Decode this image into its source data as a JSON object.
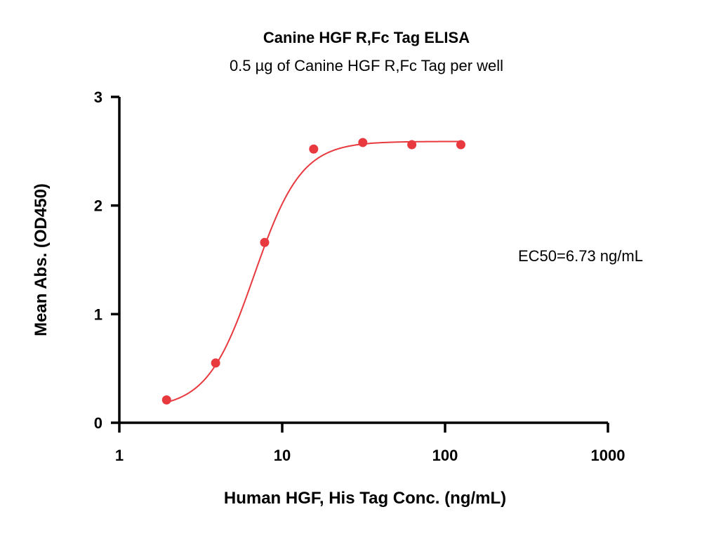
{
  "chart_data": {
    "type": "scatter",
    "title": "Canine HGF R,Fc Tag ELISA",
    "subtitle": "0.5 µg of Canine HGF R,Fc Tag per well",
    "xlabel": "Human HGF, His Tag Conc. (ng/mL)",
    "ylabel": "Mean Abs. (OD450)",
    "x_scale": "log",
    "xlim": [
      1,
      1000
    ],
    "ylim": [
      0,
      3
    ],
    "x_ticks": [
      1,
      10,
      100,
      1000
    ],
    "x_tick_labels": [
      "1",
      "10",
      "100",
      "1000"
    ],
    "y_ticks": [
      0,
      1,
      2,
      3
    ],
    "y_tick_labels": [
      "0",
      "1",
      "2",
      "3"
    ],
    "grid": false,
    "color": "#e8393f",
    "series": [
      {
        "x": [
          1.95,
          3.9,
          7.8,
          15.6,
          31.25,
          62.5,
          125
        ],
        "y": [
          0.21,
          0.55,
          1.66,
          2.52,
          2.58,
          2.56,
          2.56
        ]
      }
    ],
    "fit": {
      "model": "4PL",
      "bottom": 0.13,
      "top": 2.59,
      "ec50": 6.73,
      "hill": 3.0,
      "x_range": [
        1.95,
        125
      ]
    },
    "annotation": "EC50=6.73 ng/mL"
  }
}
